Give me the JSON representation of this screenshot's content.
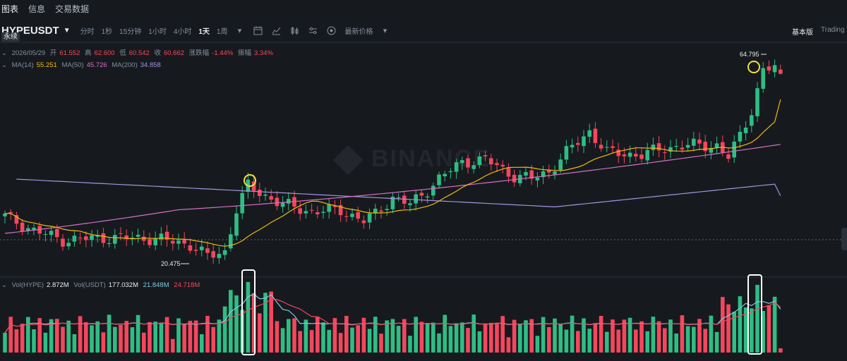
{
  "top_tabs": [
    "图表",
    "信息",
    "交易数据"
  ],
  "symbol": "HYPEUSDT",
  "perp_badge": "永续",
  "intervals": [
    "分时",
    "1秒",
    "15分钟",
    "1小时",
    "4小时",
    "1天",
    "1周"
  ],
  "active_interval": "1天",
  "price_mode": "最新价格",
  "view_basic": "基本版",
  "view_tv": "Trading V",
  "ohlc": {
    "date": "2026/05/29",
    "open_label": "开",
    "open": "61.552",
    "high_label": "高",
    "high": "62.600",
    "low_label": "低",
    "low": "60.542",
    "close_label": "收",
    "close": "60.662",
    "change_label": "涨跌幅",
    "change": "-1.44%",
    "amp_label": "振幅",
    "amp": "3.34%"
  },
  "ma": {
    "ma14_label": "MA(14)",
    "ma14": "55.251",
    "ma50_label": "MA(50)",
    "ma50": "45.726",
    "ma200_label": "MA(200)",
    "ma200": "34.858"
  },
  "vol": {
    "hype_label": "Vol(HYPE)",
    "hype": "2.872M",
    "usdt_label": "Vol(USDT)",
    "usdt": "177.032M",
    "ma1": "21.848M",
    "ma2": "24.718M"
  },
  "watermark": "BINANCE",
  "annotations": {
    "max_label": "64.795",
    "min_label": "20.475"
  },
  "colors": {
    "up": "#2ebd85",
    "down": "#f6465d",
    "ma14": "#f0b90b",
    "ma50": "#d56fc7",
    "ma200": "#a593e0",
    "highlight": "#f0e040"
  },
  "chart_data": {
    "type": "candlestick",
    "candles_shown": 135,
    "price_range": [
      20.475,
      64.795
    ],
    "last": {
      "open": 61.552,
      "high": 62.6,
      "low": 60.542,
      "close": 60.662
    },
    "ma14_last": 55.251,
    "ma50_last": 45.726,
    "ma200_last": 34.858,
    "volume_last_hype": "2.872M",
    "volume_last_usdt": "177.032M"
  }
}
